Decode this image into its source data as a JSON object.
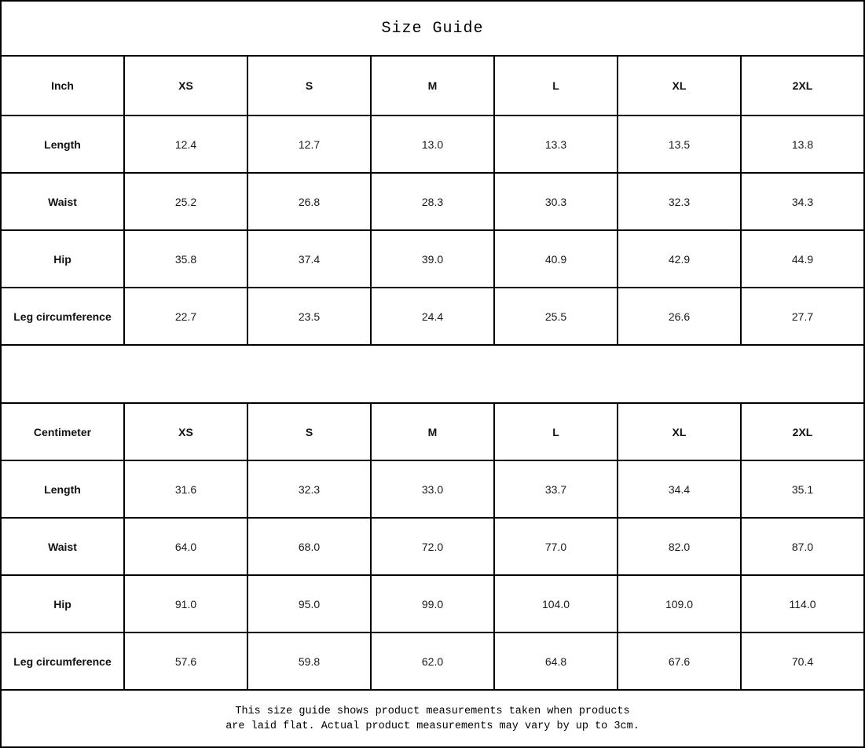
{
  "title": "Size Guide",
  "tables": [
    {
      "unit_label": "Inch",
      "sizes": [
        "XS",
        "S",
        "M",
        "L",
        "XL",
        "2XL"
      ],
      "rows": [
        {
          "label": "Length",
          "values": [
            "12.4",
            "12.7",
            "13.0",
            "13.3",
            "13.5",
            "13.8"
          ]
        },
        {
          "label": "Waist",
          "values": [
            "25.2",
            "26.8",
            "28.3",
            "30.3",
            "32.3",
            "34.3"
          ]
        },
        {
          "label": "Hip",
          "values": [
            "35.8",
            "37.4",
            "39.0",
            "40.9",
            "42.9",
            "44.9"
          ]
        },
        {
          "label": "Leg circumference",
          "values": [
            "22.7",
            "23.5",
            "24.4",
            "25.5",
            "26.6",
            "27.7"
          ]
        }
      ]
    },
    {
      "unit_label": "Centimeter",
      "sizes": [
        "XS",
        "S",
        "M",
        "L",
        "XL",
        "2XL"
      ],
      "rows": [
        {
          "label": "Length",
          "values": [
            "31.6",
            "32.3",
            "33.0",
            "33.7",
            "34.4",
            "35.1"
          ]
        },
        {
          "label": "Waist",
          "values": [
            "64.0",
            "68.0",
            "72.0",
            "77.0",
            "82.0",
            "87.0"
          ]
        },
        {
          "label": "Hip",
          "values": [
            "91.0",
            "95.0",
            "99.0",
            "104.0",
            "109.0",
            "114.0"
          ]
        },
        {
          "label": "Leg circumference",
          "values": [
            "57.6",
            "59.8",
            "62.0",
            "64.8",
            "67.6",
            "70.4"
          ]
        }
      ]
    }
  ],
  "footer": {
    "line1": "This size guide shows product measurements taken when products",
    "line2": "are laid flat. Actual product measurements may vary by up to 3cm."
  },
  "colors": {
    "background": "#ffffff",
    "border": "#000000",
    "text": "#1a1a1a"
  },
  "chart_data": {
    "type": "table",
    "title": "Size Guide",
    "categories": [
      "XS",
      "S",
      "M",
      "L",
      "XL",
      "2XL"
    ],
    "series": [
      {
        "name": "Length (inch)",
        "values": [
          12.4,
          12.7,
          13.0,
          13.3,
          13.5,
          13.8
        ]
      },
      {
        "name": "Waist (inch)",
        "values": [
          25.2,
          26.8,
          28.3,
          30.3,
          32.3,
          34.3
        ]
      },
      {
        "name": "Hip (inch)",
        "values": [
          35.8,
          37.4,
          39.0,
          40.9,
          42.9,
          44.9
        ]
      },
      {
        "name": "Leg circumference (inch)",
        "values": [
          22.7,
          23.5,
          24.4,
          25.5,
          26.6,
          27.7
        ]
      },
      {
        "name": "Length (cm)",
        "values": [
          31.6,
          32.3,
          33.0,
          33.7,
          34.4,
          35.1
        ]
      },
      {
        "name": "Waist (cm)",
        "values": [
          64.0,
          68.0,
          72.0,
          77.0,
          82.0,
          87.0
        ]
      },
      {
        "name": "Hip (cm)",
        "values": [
          91.0,
          95.0,
          99.0,
          104.0,
          109.0,
          114.0
        ]
      },
      {
        "name": "Leg circumference (cm)",
        "values": [
          57.6,
          59.8,
          62.0,
          64.8,
          67.6,
          70.4
        ]
      }
    ]
  }
}
